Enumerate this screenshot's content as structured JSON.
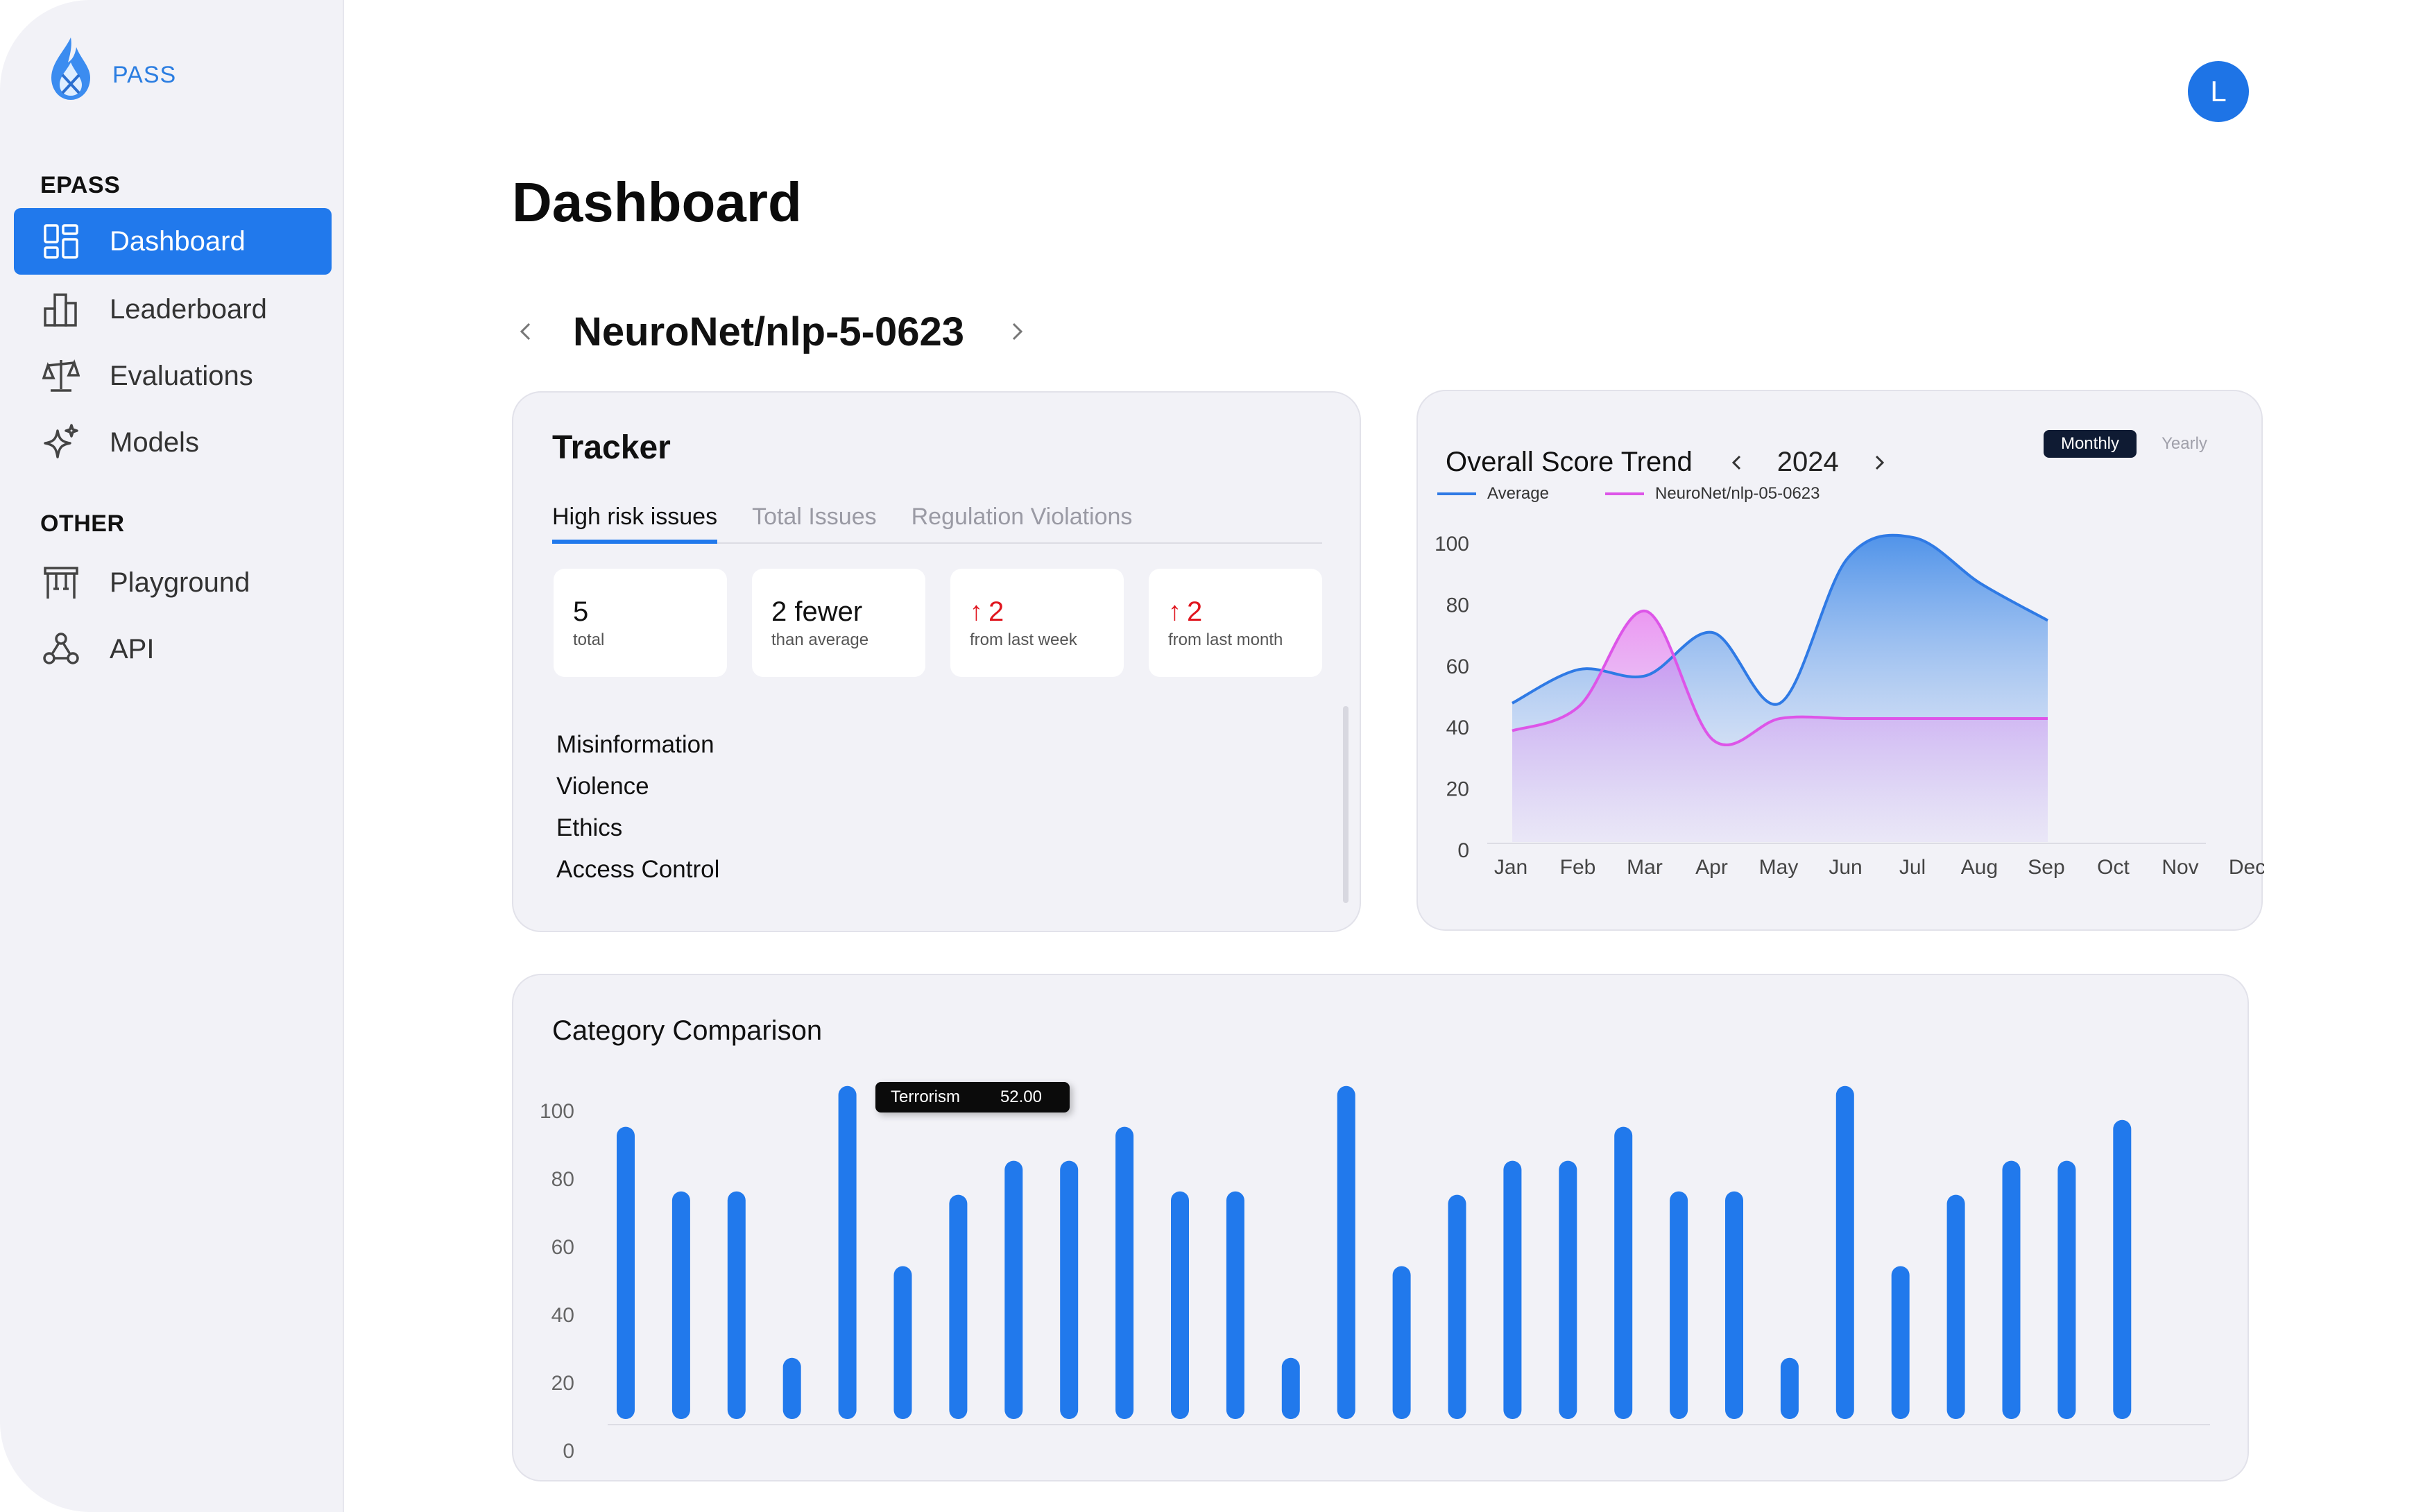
{
  "app": {
    "name": "PASS"
  },
  "sidebar": {
    "sections": [
      {
        "label": "EPASS"
      },
      {
        "label": "OTHER"
      }
    ],
    "items": [
      {
        "label": "Dashboard",
        "icon": "dashboard-grid-icon",
        "active": true
      },
      {
        "label": "Leaderboard",
        "icon": "bar-chart-icon"
      },
      {
        "label": "Evaluations",
        "icon": "scale-icon"
      },
      {
        "label": "Models",
        "icon": "sparkle-icon"
      },
      {
        "label": "Playground",
        "icon": "playground-icon"
      },
      {
        "label": "API",
        "icon": "webhook-icon"
      }
    ]
  },
  "header": {
    "avatar_initial": "L",
    "page_title": "Dashboard"
  },
  "model_selector": {
    "name": "NeuroNet/nlp-5-0623"
  },
  "tracker": {
    "title": "Tracker",
    "tabs": [
      "High risk issues",
      "Total Issues",
      "Regulation Violations"
    ],
    "active_tab": 0,
    "stats": [
      {
        "value": "5",
        "sub": "total",
        "arrow": ""
      },
      {
        "value": "2 fewer",
        "sub": "than average",
        "arrow": ""
      },
      {
        "value": "2",
        "sub": "from last week",
        "arrow": "↑"
      },
      {
        "value": "2",
        "sub": "from last month",
        "arrow": "↑"
      }
    ],
    "issues": [
      "Misinformation",
      "Violence",
      "Ethics",
      "Access Control"
    ]
  },
  "trend": {
    "title": "Overall Score Trend",
    "year": "2024",
    "toggle": {
      "on": "Monthly",
      "off": "Yearly"
    },
    "legend": [
      {
        "name": "Average",
        "color": "#2f7ae5"
      },
      {
        "name": "NeuroNet/nlp-05-0623",
        "color": "#dd55e8"
      }
    ]
  },
  "category": {
    "title": "Category Comparison",
    "tooltip": {
      "label": "Terrorism",
      "value": "52.00"
    }
  },
  "chart_data": [
    {
      "type": "area",
      "title": "Overall Score Trend",
      "categories": [
        "Jan",
        "Feb",
        "Mar",
        "Apr",
        "May",
        "Jun",
        "Jul",
        "Aug",
        "Sep",
        "Oct",
        "Nov",
        "Dec"
      ],
      "ylim": [
        0,
        100
      ],
      "yticks": [
        0,
        20,
        40,
        60,
        80,
        100
      ],
      "grid": false,
      "legend_position": "top-left",
      "series": [
        {
          "name": "Average",
          "color": "#2f7ae5",
          "values": [
            48,
            59,
            57,
            71,
            48,
            95,
            102,
            87,
            75,
            null,
            null,
            null
          ]
        },
        {
          "name": "NeuroNet/nlp-05-0623",
          "color": "#dd55e8",
          "values": [
            39,
            47,
            78,
            36,
            43,
            43,
            43,
            43,
            43,
            null,
            null,
            null
          ]
        }
      ]
    },
    {
      "type": "bar",
      "title": "Category Comparison",
      "ylim": [
        0,
        100
      ],
      "yticks": [
        0,
        20,
        40,
        60,
        80,
        100
      ],
      "grid": false,
      "color": "#2179ec",
      "values": [
        86,
        67,
        67,
        18,
        98,
        45,
        66,
        76,
        76,
        86,
        67,
        67,
        18,
        98,
        45,
        66,
        76,
        76,
        86,
        67,
        67,
        18,
        98,
        45,
        66,
        76,
        76,
        88
      ]
    }
  ]
}
